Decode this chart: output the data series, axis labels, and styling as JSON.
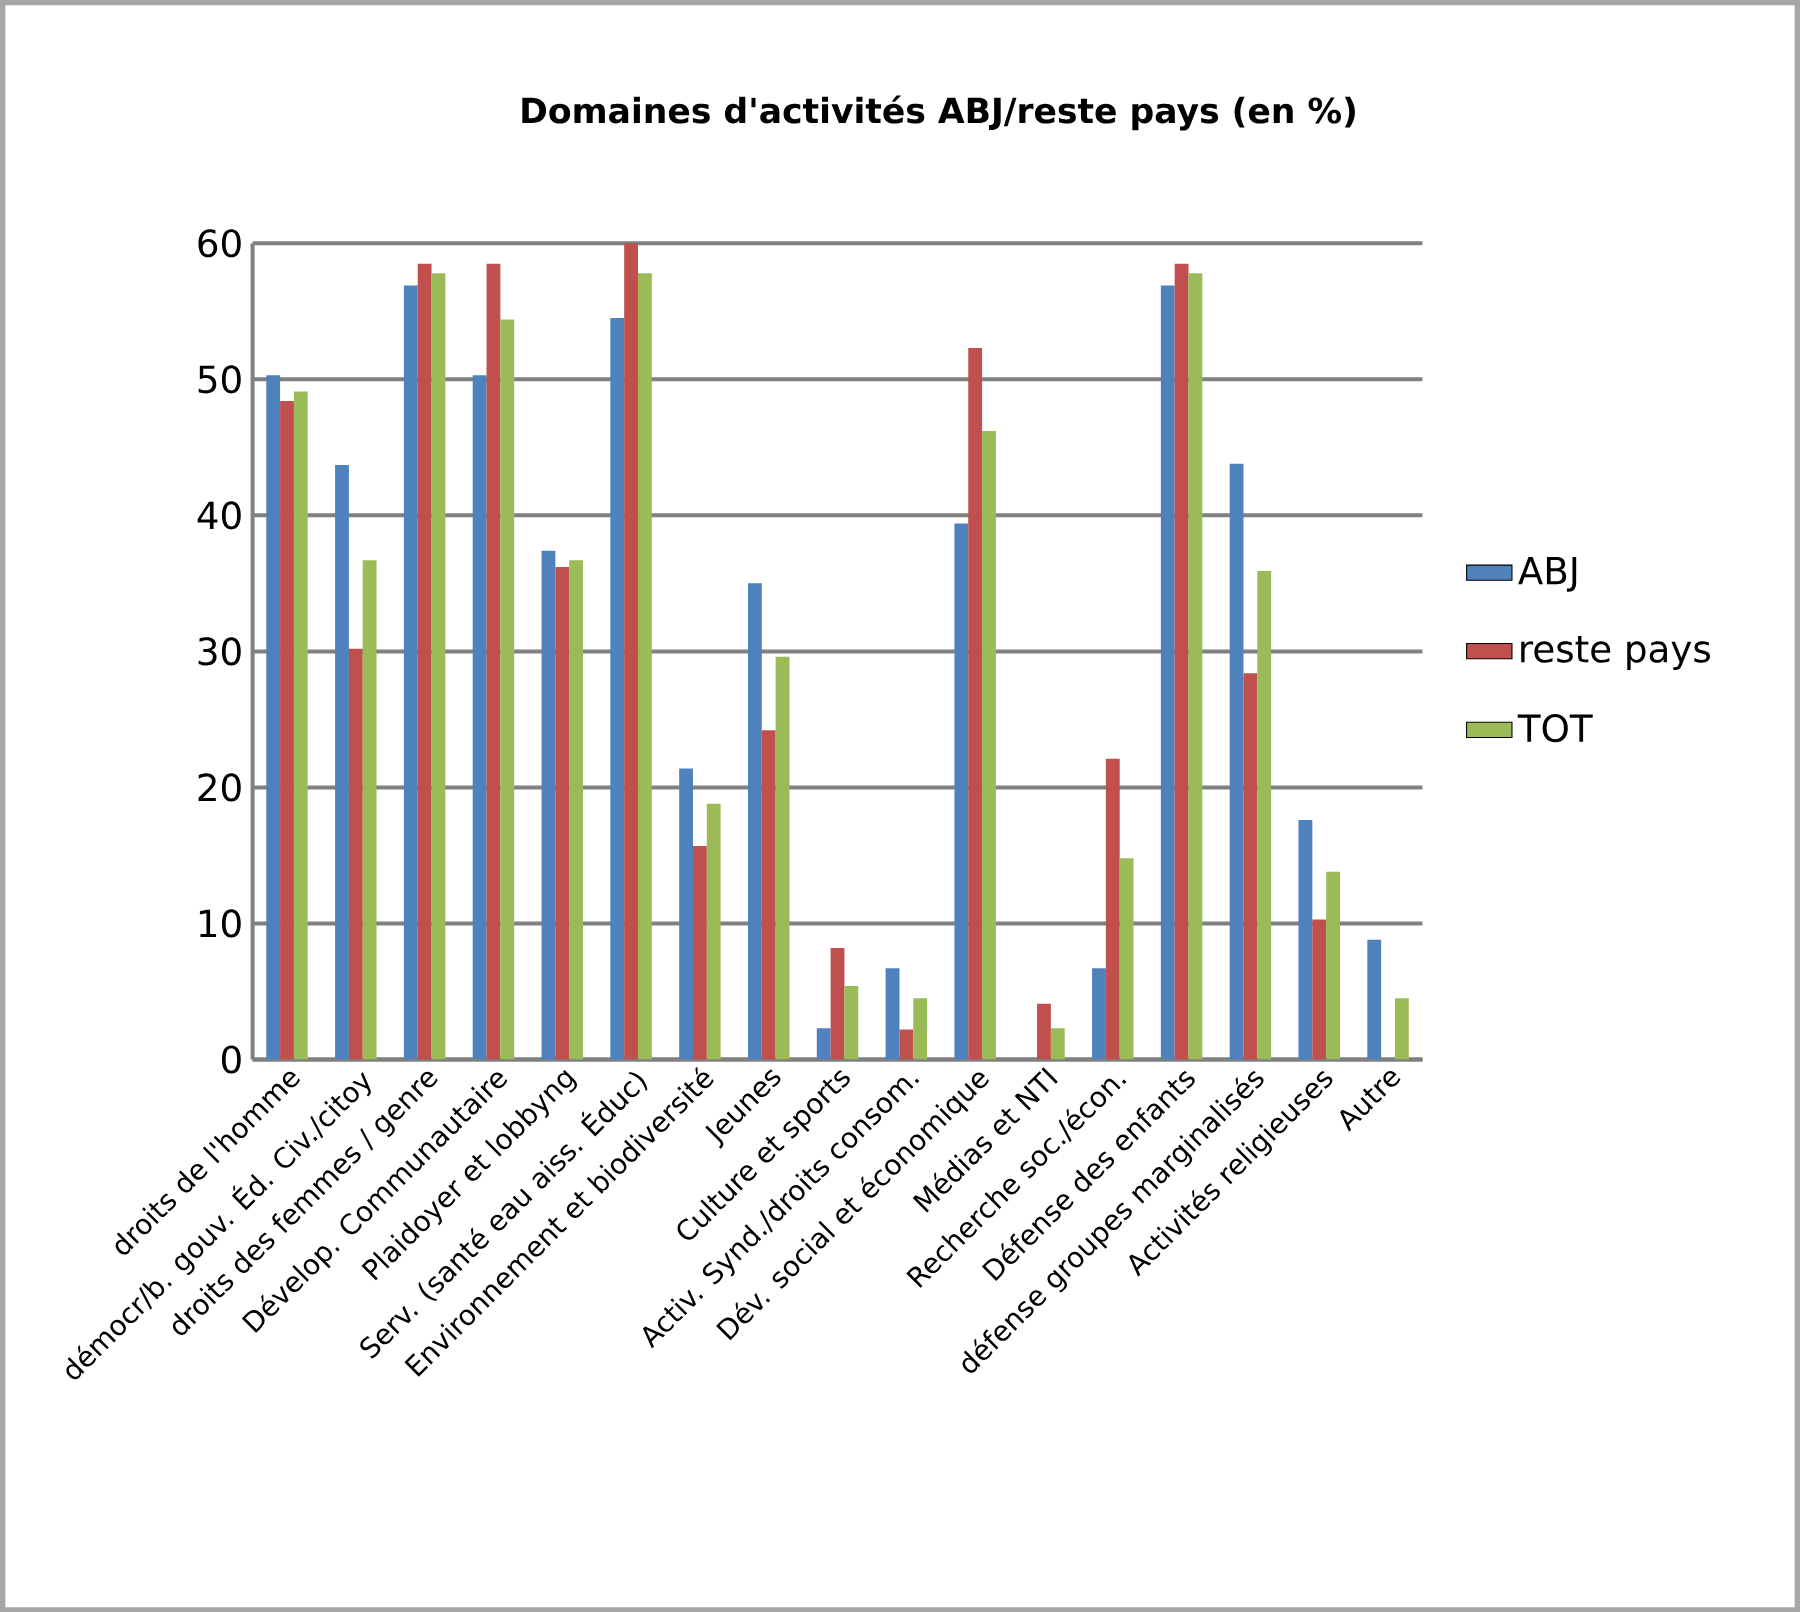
{
  "chart_data": {
    "type": "bar",
    "title": "Domaines d'activités ABJ/reste pays  (en  %)",
    "categories": [
      "droits de l'homme",
      "démocr/b. gouv. Éd. Civ./citoy",
      "droits des femmes / genre",
      "Dévelop. Communautaire",
      "Plaidoyer et lobbyng",
      "Serv. (santé eau aiss. Éduc)",
      "Environnement et biodiversité",
      "Jeunes",
      "Culture et sports",
      "Activ. Synd./droits consom.",
      "Dév. social et économique",
      "Médias et NTI",
      "Recherche soc./écon.",
      "Défense des enfants",
      "défense groupes marginalisés",
      "Activités religieuses",
      "Autre"
    ],
    "series": [
      {
        "name": "ABJ",
        "color": "#4f81bd",
        "values": [
          50.3,
          43.7,
          56.9,
          50.3,
          37.4,
          54.5,
          21.4,
          35.0,
          2.3,
          6.7,
          39.4,
          0,
          6.7,
          56.9,
          43.8,
          17.6,
          8.8
        ]
      },
      {
        "name": "reste pays",
        "color": "#c0504d",
        "values": [
          48.4,
          30.2,
          58.5,
          58.5,
          36.2,
          60,
          15.7,
          24.2,
          8.2,
          2.2,
          52.3,
          4.1,
          22.1,
          58.5,
          28.4,
          10.3,
          0
        ]
      },
      {
        "name": "TOT",
        "color": "#9bbb59",
        "values": [
          49.1,
          36.7,
          57.8,
          54.4,
          36.7,
          57.8,
          18.8,
          29.6,
          5.4,
          4.5,
          46.2,
          2.3,
          14.8,
          57.8,
          35.9,
          13.8,
          4.5
        ]
      }
    ],
    "ylim": [
      0,
      60
    ],
    "yticks": [
      0,
      10,
      20,
      30,
      40,
      50,
      60
    ],
    "grid": "y",
    "legend": "right"
  }
}
